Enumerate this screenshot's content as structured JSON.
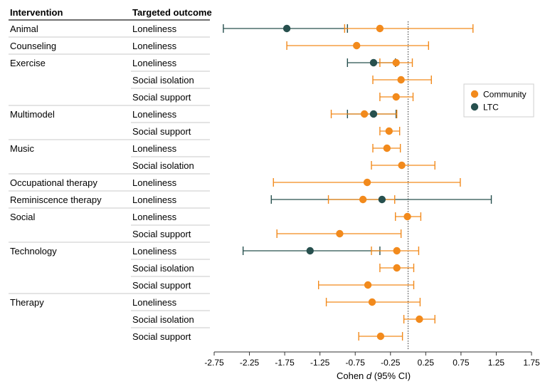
{
  "chart_data": {
    "type": "forest",
    "header_intervention": "Intervention",
    "header_outcome": "Targeted outcome",
    "xlabel_prefix": "Cohen ",
    "xlabel_italic": "d",
    "xlabel_suffix": " (95% CI)",
    "xlim": [
      -2.75,
      1.75
    ],
    "xticks": [
      "-2.75",
      "-2.25",
      "-1.75",
      "-1.25",
      "-0.75",
      "-0.25",
      "0.25",
      "0.75",
      "1.25",
      "1.75"
    ],
    "reference_line": 0,
    "legend": [
      {
        "name": "Community",
        "color": "#f28a1c"
      },
      {
        "name": "LTC",
        "color": "#27504e"
      }
    ],
    "groups": [
      {
        "intervention": "Animal",
        "rows": [
          {
            "outcome": "Loneliness",
            "community": {
              "est": -0.4,
              "lo": -0.9,
              "hi": 0.92
            },
            "ltc": {
              "est": -1.72,
              "lo": -2.62,
              "hi": -0.86
            }
          }
        ]
      },
      {
        "intervention": "Counseling",
        "rows": [
          {
            "outcome": "Loneliness",
            "community": {
              "est": -0.73,
              "lo": -1.72,
              "hi": 0.29
            }
          }
        ]
      },
      {
        "intervention": "Exercise",
        "rows": [
          {
            "outcome": "Loneliness",
            "community": {
              "est": -0.17,
              "lo": -0.4,
              "hi": 0.06
            },
            "ltc": {
              "est": -0.49,
              "lo": -0.86,
              "hi": -0.18
            }
          },
          {
            "outcome": "Social isolation",
            "community": {
              "est": -0.1,
              "lo": -0.5,
              "hi": 0.33
            }
          },
          {
            "outcome": "Social support",
            "community": {
              "est": -0.17,
              "lo": -0.4,
              "hi": 0.07
            }
          }
        ]
      },
      {
        "intervention": "Multimodel",
        "rows": [
          {
            "outcome": "Loneliness",
            "community": {
              "est": -0.62,
              "lo": -1.09,
              "hi": -0.16
            },
            "ltc": {
              "est": -0.49,
              "lo": -0.86,
              "hi": -0.17
            }
          },
          {
            "outcome": "Social support",
            "community": {
              "est": -0.27,
              "lo": -0.4,
              "hi": -0.12
            }
          }
        ]
      },
      {
        "intervention": "Music",
        "rows": [
          {
            "outcome": "Loneliness",
            "community": {
              "est": -0.3,
              "lo": -0.5,
              "hi": -0.11
            }
          },
          {
            "outcome": "Social isolation",
            "community": {
              "est": -0.09,
              "lo": -0.52,
              "hi": 0.38
            }
          }
        ]
      },
      {
        "intervention": "Occupational therapy",
        "rows": [
          {
            "outcome": "Loneliness",
            "community": {
              "est": -0.58,
              "lo": -1.91,
              "hi": 0.74
            }
          }
        ]
      },
      {
        "intervention": "Reminiscence therapy",
        "rows": [
          {
            "outcome": "Loneliness",
            "community": {
              "est": -0.64,
              "lo": -1.13,
              "hi": -0.19
            },
            "ltc": {
              "est": -0.37,
              "lo": -1.94,
              "hi": 1.18
            }
          }
        ]
      },
      {
        "intervention": "Social",
        "rows": [
          {
            "outcome": "Loneliness",
            "community": {
              "est": -0.01,
              "lo": -0.18,
              "hi": 0.18
            }
          },
          {
            "outcome": "Social support",
            "community": {
              "est": -0.97,
              "lo": -1.86,
              "hi": -0.1
            }
          }
        ]
      },
      {
        "intervention": "Technology",
        "rows": [
          {
            "outcome": "Loneliness",
            "community": {
              "est": -0.16,
              "lo": -0.52,
              "hi": 0.15
            },
            "ltc": {
              "est": -1.39,
              "lo": -2.34,
              "hi": -0.4
            }
          },
          {
            "outcome": "Social isolation",
            "community": {
              "est": -0.16,
              "lo": -0.4,
              "hi": 0.08
            }
          },
          {
            "outcome": "Social support",
            "community": {
              "est": -0.57,
              "lo": -1.27,
              "hi": 0.08
            }
          }
        ]
      },
      {
        "intervention": "Therapy",
        "rows": [
          {
            "outcome": "Loneliness",
            "community": {
              "est": -0.51,
              "lo": -1.16,
              "hi": 0.17
            }
          },
          {
            "outcome": "Social isolation",
            "community": {
              "est": 0.16,
              "lo": -0.06,
              "hi": 0.38
            }
          },
          {
            "outcome": "Social support",
            "community": {
              "est": -0.39,
              "lo": -0.7,
              "hi": -0.08
            }
          }
        ]
      }
    ]
  }
}
